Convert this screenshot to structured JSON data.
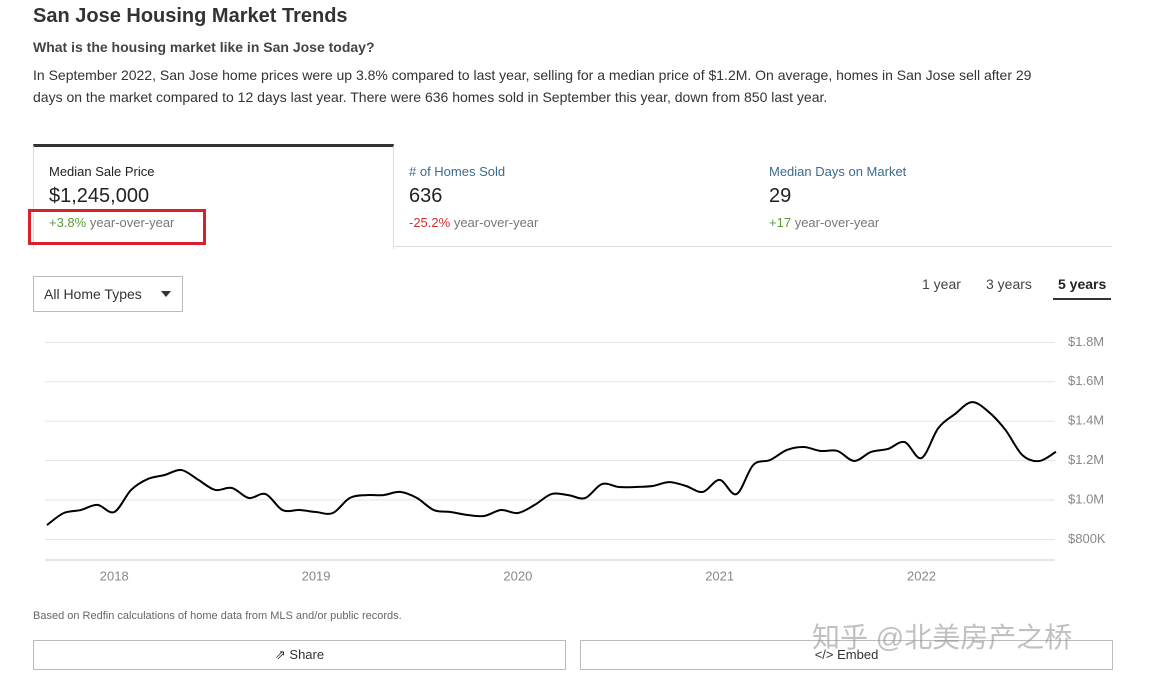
{
  "header": {
    "title": "San Jose Housing Market Trends",
    "subtitle": "What is the housing market like in San Jose today?",
    "description": [
      "In September 2022, San Jose home prices were up 3.8% compared to last year, selling for a median price of $1.2M. On average, homes in San Jose sell after 29",
      "days on the market compared to 12 days last year. There were 636 homes sold in September this year, down from 850 last year."
    ]
  },
  "stats": [
    {
      "label": "Median Sale Price",
      "value": "$1,245,000",
      "change": "+3.8%",
      "period": "year-over-year"
    },
    {
      "label": "# of Homes Sold",
      "value": "636",
      "change": "-25.2%",
      "period": "year-over-year"
    },
    {
      "label": "Median Days on Market",
      "value": "29",
      "change": "+17",
      "period": "year-over-year"
    }
  ],
  "filter": "All Home Types",
  "ranges": [
    "1 year",
    "3 years",
    "5 years"
  ],
  "chart_data": {
    "type": "line",
    "categories": [
      null,
      null,
      null,
      null,
      "2018",
      null,
      null,
      null,
      null,
      null,
      null,
      null,
      null,
      null,
      null,
      null,
      "2019",
      null,
      null,
      null,
      null,
      null,
      null,
      null,
      null,
      null,
      null,
      null,
      "2020",
      null,
      null,
      null,
      null,
      null,
      null,
      null,
      null,
      null,
      null,
      null,
      "2021",
      null,
      null,
      null,
      null,
      null,
      null,
      null,
      null,
      null,
      null,
      null,
      "2022",
      null,
      null,
      null,
      null,
      null,
      null,
      null,
      null
    ],
    "series": [
      {
        "name": "Median Sale Price",
        "color": "#000000",
        "values": [
          873000,
          934000,
          949000,
          975000,
          939000,
          1051000,
          1107000,
          1127000,
          1152000,
          1102000,
          1051000,
          1061000,
          1010000,
          1030000,
          949000,
          949000,
          939000,
          934000,
          1010000,
          1025000,
          1025000,
          1041000,
          1010000,
          949000,
          939000,
          924000,
          919000,
          949000,
          934000,
          975000,
          1030000,
          1025000,
          1010000,
          1081000,
          1066000,
          1066000,
          1071000,
          1091000,
          1071000,
          1041000,
          1102000,
          1030000,
          1178000,
          1203000,
          1254000,
          1269000,
          1249000,
          1249000,
          1198000,
          1244000,
          1259000,
          1294000,
          1213000,
          1365000,
          1437000,
          1497000,
          1447000,
          1355000,
          1228000,
          1198000,
          1245000
        ]
      }
    ],
    "ylim": [
      700000,
      1800000
    ],
    "yticks": [
      {
        "value": 800000,
        "label": "$800K"
      },
      {
        "value": 1000000,
        "label": "$1.0M"
      },
      {
        "value": 1200000,
        "label": "$1.2M"
      },
      {
        "value": 1400000,
        "label": "$1.4M"
      },
      {
        "value": 1600000,
        "label": "$1.6M"
      },
      {
        "value": 1800000,
        "label": "$1.8M"
      }
    ],
    "grid": true
  },
  "footnote": "Based on Redfin calculations of home data from MLS and/or public records.",
  "buttons": [
    "Share",
    "Embed"
  ],
  "watermark": "知乎 @北美房产之桥"
}
